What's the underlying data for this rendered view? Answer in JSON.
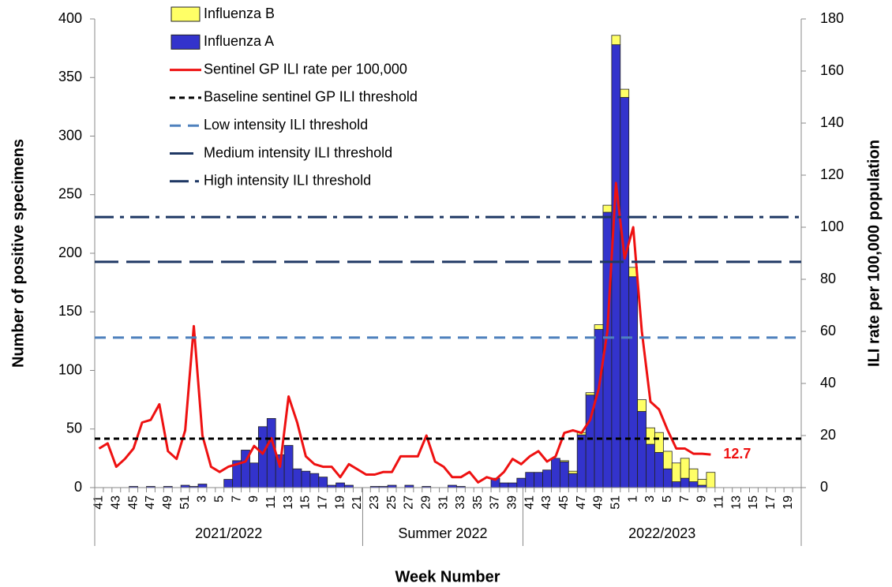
{
  "chart_data": {
    "type": "bar",
    "y_label": "Number of positive specimens",
    "y2_label": "ILI rate per 100,000 population",
    "x_label": "Week Number",
    "x_groups": [
      "2021/2022",
      "Summer 2022",
      "2022/2023"
    ],
    "categories": [
      "41",
      null,
      "43",
      null,
      "45",
      null,
      "47",
      null,
      "49",
      null,
      "51",
      null,
      "3",
      null,
      "5",
      null,
      "7",
      null,
      "9",
      null,
      "11",
      null,
      "13",
      null,
      "15",
      null,
      "17",
      null,
      "19",
      null,
      "21",
      null,
      "23",
      null,
      "25",
      null,
      "27",
      null,
      "29",
      null,
      "31",
      null,
      "33",
      null,
      "35",
      null,
      "37",
      null,
      "39",
      null,
      "41",
      null,
      "43",
      null,
      "45",
      null,
      "47",
      null,
      "49",
      null,
      "51",
      null,
      "1",
      null,
      "3",
      null,
      "5",
      null,
      "7",
      null,
      "9",
      null,
      "11",
      null,
      "13",
      null,
      "15",
      null,
      "17",
      null,
      "19",
      null
    ],
    "ylim": [
      0,
      400
    ],
    "yticks": [
      0,
      50,
      100,
      150,
      200,
      250,
      300,
      350,
      400
    ],
    "y2lim": [
      0,
      180
    ],
    "y2ticks": [
      0,
      20,
      40,
      60,
      80,
      100,
      120,
      140,
      160,
      180
    ],
    "series": [
      {
        "name": "Influenza B",
        "type": "bar",
        "color": "#ffff66",
        "values": [
          0,
          0,
          0,
          0,
          0,
          0,
          0,
          0,
          0,
          0,
          0,
          0,
          0,
          0,
          0,
          0,
          0,
          0,
          0,
          0,
          0,
          0,
          0,
          0,
          0,
          0,
          0,
          0,
          0,
          0,
          0,
          0,
          0,
          0,
          0,
          0,
          0,
          0,
          0,
          0,
          0,
          0,
          0,
          0,
          0,
          0,
          0,
          0,
          0,
          0,
          0,
          0,
          0,
          0,
          1,
          2,
          2,
          2,
          4,
          6,
          8,
          7,
          8,
          10,
          14,
          17,
          15,
          16,
          17,
          11,
          5,
          13,
          null,
          null,
          null,
          null,
          null,
          null,
          null,
          null,
          null,
          null
        ]
      },
      {
        "name": "Influenza A",
        "type": "bar",
        "color": "#3333cc",
        "values": [
          0,
          0,
          0,
          0,
          1,
          0,
          1,
          0,
          1,
          0,
          2,
          1,
          3,
          0,
          0,
          7,
          23,
          32,
          21,
          52,
          59,
          28,
          36,
          16,
          14,
          12,
          9,
          2,
          4,
          2,
          0,
          0,
          1,
          1,
          2,
          0,
          2,
          0,
          1,
          0,
          0,
          2,
          1,
          0,
          0,
          0,
          8,
          4,
          4,
          8,
          13,
          13,
          15,
          25,
          22,
          12,
          45,
          79,
          135,
          235,
          378,
          333,
          180,
          65,
          37,
          30,
          16,
          5,
          8,
          5,
          2,
          0,
          null,
          null,
          null,
          null,
          null,
          null,
          null,
          null,
          null,
          null
        ]
      },
      {
        "name": "Sentinel GP ILI rate per 100,000",
        "type": "line",
        "axis": "y2",
        "color": "#ee1111",
        "label_last": true,
        "values": [
          15,
          17,
          8,
          11,
          15,
          25,
          26,
          32,
          14,
          11,
          22,
          62,
          20,
          8,
          6,
          8,
          9,
          10,
          16,
          13,
          19,
          8,
          35,
          25,
          12,
          9,
          8,
          8,
          4,
          9,
          7,
          5,
          5,
          6,
          6,
          12,
          12,
          12,
          20,
          10,
          8,
          4,
          4,
          6,
          2,
          4,
          3,
          6,
          11,
          9,
          12,
          14,
          10,
          12,
          21,
          22,
          21,
          26,
          38,
          60,
          117,
          88,
          100,
          60,
          33,
          30,
          22,
          15,
          15,
          13,
          13,
          12.7,
          null,
          null,
          null,
          null,
          null,
          null,
          null,
          null,
          null,
          null
        ]
      },
      {
        "name": "Baseline sentinel GP ILI threshold",
        "type": "hline",
        "axis": "y2",
        "color": "#000000",
        "style": "dashed",
        "value": 18.8
      },
      {
        "name": "Low intensity ILI threshold",
        "type": "hline",
        "axis": "y2",
        "color": "#4f81bd",
        "style": "medium-dash",
        "value": 57.6
      },
      {
        "name": "Medium intensity ILI threshold",
        "type": "hline",
        "axis": "y2",
        "color": "#1f3864",
        "style": "long-dash",
        "value": 86.7
      },
      {
        "name": "High intensity ILI threshold",
        "type": "hline",
        "axis": "y2",
        "color": "#1f3864",
        "style": "dash-dot",
        "value": 103.9
      }
    ]
  }
}
